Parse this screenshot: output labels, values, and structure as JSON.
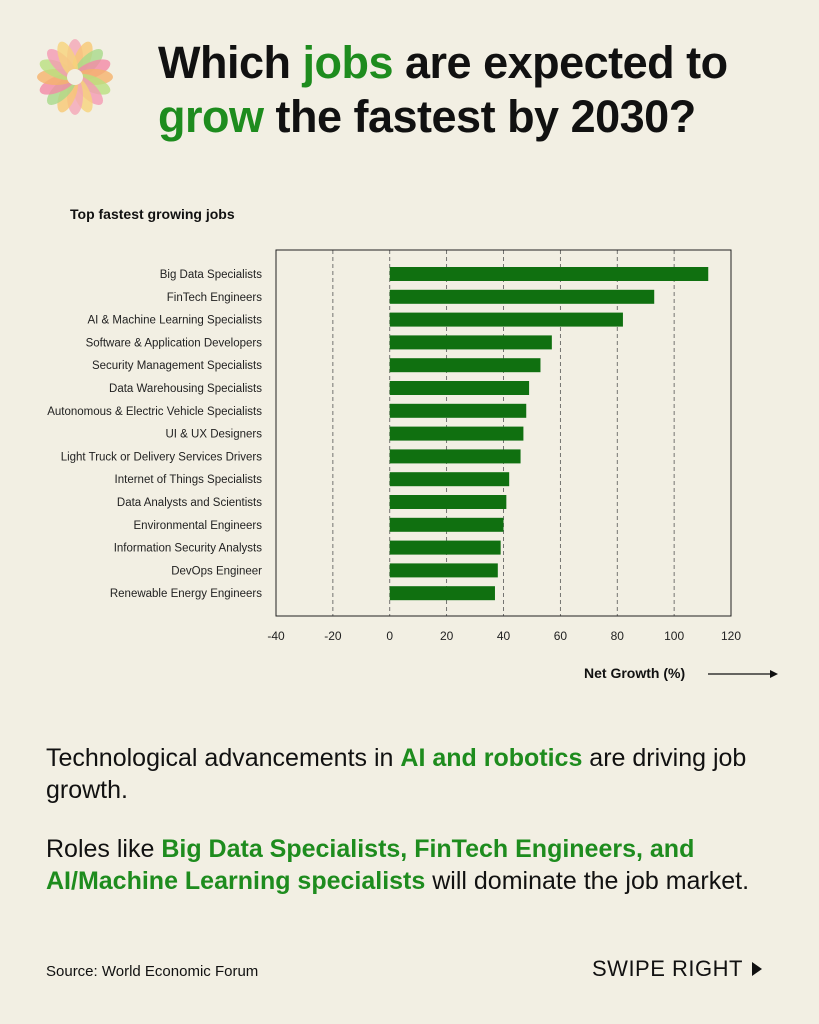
{
  "header": {
    "title_part1": "Which ",
    "title_highlight1": "jobs",
    "title_part2": " are expected to",
    "title_highlight2": "grow",
    "title_part3": " the fastest by 2030?"
  },
  "logo": {
    "icon": "flower-logo-icon"
  },
  "chart_data": {
    "type": "bar",
    "orientation": "horizontal",
    "title": "Top fastest growing jobs",
    "xlabel": "Net Growth (%)",
    "ylabel": "",
    "categories": [
      "Big Data Specialists",
      "FinTech Engineers",
      "AI & Machine Learning Specialists",
      "Software & Application Developers",
      "Security Management Specialists",
      "Data Warehousing Specialists",
      "Autonomous & Electric Vehicle Specialists",
      "UI & UX Designers",
      "Light Truck or Delivery Services Drivers",
      "Internet of Things Specialists",
      "Data Analysts and Scientists",
      "Environmental Engineers",
      "Information Security Analysts",
      "DevOps Engineer",
      "Renewable Energy Engineers"
    ],
    "values": [
      112,
      93,
      82,
      57,
      53,
      49,
      48,
      47,
      46,
      42,
      41,
      40,
      39,
      38,
      37
    ],
    "xlim": [
      -40,
      120
    ],
    "xticks": [
      -40,
      -20,
      0,
      20,
      40,
      60,
      80,
      100,
      120
    ],
    "grid": "vertical dashed",
    "bar_color": "#107010"
  },
  "body": {
    "p1_before": "Technological advancements in ",
    "p1_bold": "AI and robotics",
    "p1_after": " are driving job growth.",
    "p2_before": "Roles like ",
    "p2_bold": "Big Data Specialists, FinTech Engineers, and AI/Machine Learning specialists",
    "p2_after": " will dominate the job market."
  },
  "footer": {
    "source": "Source: World Economic Forum",
    "swipe_label": "SWIPE RIGHT",
    "swipe_icon": "triangle-right-icon"
  },
  "colors": {
    "background": "#f2efe3",
    "accent": "#1e8c1e",
    "text": "#111111"
  }
}
